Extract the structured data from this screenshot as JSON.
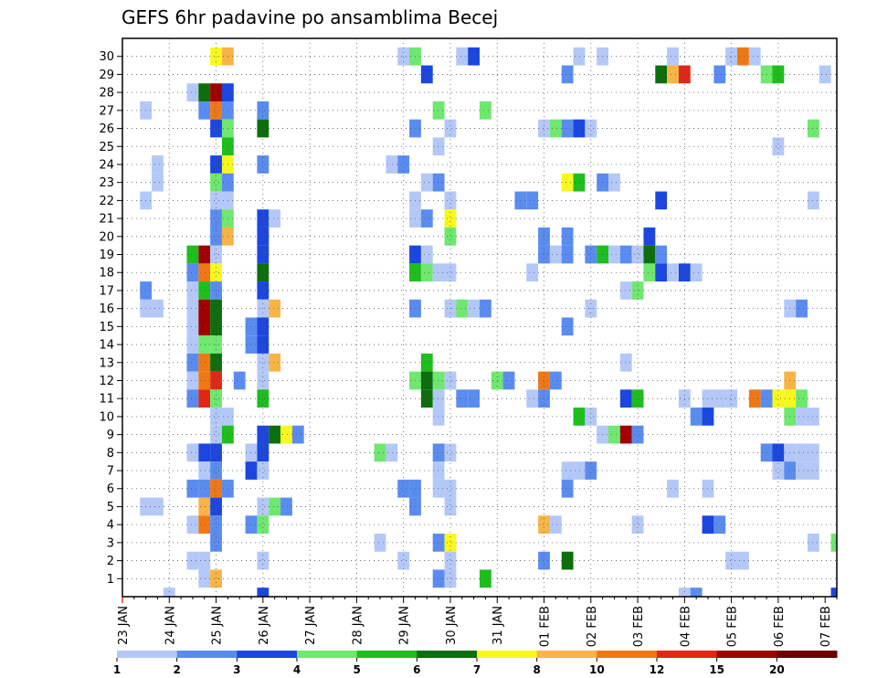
{
  "chart_data": {
    "type": "heatmap",
    "title": "GEFS 6hr padavine po ansamblima Becej",
    "xlabel": "",
    "ylabel": "",
    "x_tick_labels": [
      "23 JAN",
      "24 JAN",
      "25 JAN",
      "26 JAN",
      "27 JAN",
      "28 JAN",
      "29 JAN",
      "30 JAN",
      "31 JAN",
      "01 FEB",
      "02 FEB",
      "03 FEB",
      "04 FEB",
      "05 FEB",
      "06 FEB",
      "07 FEB"
    ],
    "y_tick_labels": [
      "1",
      "2",
      "3",
      "4",
      "5",
      "6",
      "7",
      "8",
      "9",
      "10",
      "11",
      "12",
      "13",
      "14",
      "15",
      "16",
      "17",
      "18",
      "19",
      "20",
      "21",
      "22",
      "23",
      "24",
      "25",
      "26",
      "27",
      "28",
      "29",
      "30"
    ],
    "xlim": [
      0,
      61
    ],
    "ylim": [
      0,
      30
    ],
    "grid": true,
    "color_levels": [
      1,
      2,
      3,
      4,
      5,
      6,
      7,
      8,
      10,
      12,
      15,
      20
    ],
    "colors": [
      "#b4c8f8",
      "#5a8cf0",
      "#1c46e0",
      "#6ee86e",
      "#1ebe1e",
      "#0c6e0c",
      "#f8f81e",
      "#f8b446",
      "#f07814",
      "#e02814",
      "#a00000",
      "#6e0000"
    ],
    "cells": [
      [
        8,
        30,
        7
      ],
      [
        9,
        30,
        8
      ],
      [
        24,
        30,
        1
      ],
      [
        25,
        30,
        4
      ],
      [
        29,
        30,
        1
      ],
      [
        30,
        30,
        3
      ],
      [
        39,
        30,
        1
      ],
      [
        41,
        30,
        1
      ],
      [
        47,
        30,
        1
      ],
      [
        52,
        30,
        1
      ],
      [
        53,
        30,
        9
      ],
      [
        54,
        30,
        1
      ],
      [
        26,
        29,
        3
      ],
      [
        38,
        29,
        2
      ],
      [
        46,
        29,
        6
      ],
      [
        47,
        29,
        8
      ],
      [
        48,
        29,
        10
      ],
      [
        51,
        29,
        2
      ],
      [
        55,
        29,
        4
      ],
      [
        56,
        29,
        5
      ],
      [
        60,
        29,
        1
      ],
      [
        6,
        28,
        1
      ],
      [
        7,
        28,
        6
      ],
      [
        8,
        28,
        11
      ],
      [
        9,
        28,
        3
      ],
      [
        2,
        27,
        1
      ],
      [
        7,
        27,
        2
      ],
      [
        8,
        27,
        9
      ],
      [
        9,
        27,
        2
      ],
      [
        12,
        27,
        2
      ],
      [
        27,
        27,
        4
      ],
      [
        31,
        27,
        4
      ],
      [
        8,
        26,
        3
      ],
      [
        9,
        26,
        4
      ],
      [
        12,
        26,
        6
      ],
      [
        25,
        26,
        2
      ],
      [
        28,
        26,
        1
      ],
      [
        36,
        26,
        1
      ],
      [
        37,
        26,
        4
      ],
      [
        38,
        26,
        2
      ],
      [
        39,
        26,
        3
      ],
      [
        40,
        26,
        1
      ],
      [
        59,
        26,
        4
      ],
      [
        9,
        25,
        5
      ],
      [
        27,
        25,
        1
      ],
      [
        56,
        25,
        1
      ],
      [
        3,
        24,
        1
      ],
      [
        8,
        24,
        3
      ],
      [
        9,
        24,
        7
      ],
      [
        12,
        24,
        2
      ],
      [
        23,
        24,
        1
      ],
      [
        24,
        24,
        2
      ],
      [
        3,
        23,
        1
      ],
      [
        8,
        23,
        4
      ],
      [
        9,
        23,
        2
      ],
      [
        26,
        23,
        1
      ],
      [
        27,
        23,
        2
      ],
      [
        38,
        23,
        7
      ],
      [
        39,
        23,
        5
      ],
      [
        41,
        23,
        2
      ],
      [
        42,
        23,
        1
      ],
      [
        2,
        22,
        1
      ],
      [
        8,
        22,
        1
      ],
      [
        9,
        22,
        1
      ],
      [
        25,
        22,
        1
      ],
      [
        28,
        22,
        1
      ],
      [
        34,
        22,
        2
      ],
      [
        35,
        22,
        2
      ],
      [
        46,
        22,
        3
      ],
      [
        59,
        22,
        1
      ],
      [
        8,
        21,
        2
      ],
      [
        9,
        21,
        4
      ],
      [
        12,
        21,
        3
      ],
      [
        13,
        21,
        1
      ],
      [
        25,
        21,
        1
      ],
      [
        26,
        21,
        2
      ],
      [
        28,
        21,
        7
      ],
      [
        8,
        20,
        2
      ],
      [
        9,
        20,
        8
      ],
      [
        12,
        20,
        3
      ],
      [
        28,
        20,
        4
      ],
      [
        36,
        20,
        2
      ],
      [
        38,
        20,
        2
      ],
      [
        45,
        20,
        3
      ],
      [
        6,
        19,
        5
      ],
      [
        7,
        19,
        11
      ],
      [
        8,
        19,
        1
      ],
      [
        12,
        19,
        3
      ],
      [
        25,
        19,
        3
      ],
      [
        26,
        19,
        1
      ],
      [
        36,
        19,
        2
      ],
      [
        37,
        19,
        1
      ],
      [
        38,
        19,
        2
      ],
      [
        40,
        19,
        2
      ],
      [
        41,
        19,
        5
      ],
      [
        42,
        19,
        1
      ],
      [
        43,
        19,
        2
      ],
      [
        44,
        19,
        1
      ],
      [
        45,
        19,
        6
      ],
      [
        46,
        19,
        2
      ],
      [
        6,
        18,
        2
      ],
      [
        7,
        18,
        9
      ],
      [
        8,
        18,
        7
      ],
      [
        12,
        18,
        6
      ],
      [
        25,
        18,
        5
      ],
      [
        26,
        18,
        4
      ],
      [
        27,
        18,
        1
      ],
      [
        28,
        18,
        1
      ],
      [
        35,
        18,
        1
      ],
      [
        45,
        18,
        4
      ],
      [
        46,
        18,
        3
      ],
      [
        47,
        18,
        1
      ],
      [
        48,
        18,
        3
      ],
      [
        49,
        18,
        1
      ],
      [
        2,
        17,
        2
      ],
      [
        6,
        17,
        1
      ],
      [
        7,
        17,
        5
      ],
      [
        8,
        17,
        2
      ],
      [
        12,
        17,
        3
      ],
      [
        43,
        17,
        1
      ],
      [
        44,
        17,
        4
      ],
      [
        2,
        16,
        1
      ],
      [
        3,
        16,
        1
      ],
      [
        6,
        16,
        1
      ],
      [
        7,
        16,
        11
      ],
      [
        8,
        16,
        6
      ],
      [
        12,
        16,
        1
      ],
      [
        13,
        16,
        8
      ],
      [
        25,
        16,
        2
      ],
      [
        28,
        16,
        1
      ],
      [
        29,
        16,
        4
      ],
      [
        30,
        16,
        1
      ],
      [
        31,
        16,
        2
      ],
      [
        40,
        16,
        1
      ],
      [
        57,
        16,
        1
      ],
      [
        58,
        16,
        2
      ],
      [
        6,
        15,
        1
      ],
      [
        7,
        15,
        11
      ],
      [
        8,
        15,
        6
      ],
      [
        11,
        15,
        2
      ],
      [
        12,
        15,
        3
      ],
      [
        38,
        15,
        2
      ],
      [
        6,
        14,
        1
      ],
      [
        7,
        14,
        4
      ],
      [
        8,
        14,
        4
      ],
      [
        11,
        14,
        2
      ],
      [
        12,
        14,
        3
      ],
      [
        6,
        13,
        2
      ],
      [
        7,
        13,
        9
      ],
      [
        8,
        13,
        6
      ],
      [
        12,
        13,
        1
      ],
      [
        13,
        13,
        8
      ],
      [
        26,
        13,
        5
      ],
      [
        43,
        13,
        1
      ],
      [
        6,
        12,
        1
      ],
      [
        7,
        12,
        9
      ],
      [
        8,
        12,
        10
      ],
      [
        10,
        12,
        2
      ],
      [
        12,
        12,
        1
      ],
      [
        25,
        12,
        4
      ],
      [
        26,
        12,
        6
      ],
      [
        27,
        12,
        4
      ],
      [
        28,
        12,
        1
      ],
      [
        32,
        12,
        4
      ],
      [
        33,
        12,
        2
      ],
      [
        36,
        12,
        9
      ],
      [
        37,
        12,
        2
      ],
      [
        57,
        12,
        8
      ],
      [
        6,
        11,
        2
      ],
      [
        7,
        11,
        10
      ],
      [
        8,
        11,
        4
      ],
      [
        12,
        11,
        5
      ],
      [
        26,
        11,
        6
      ],
      [
        27,
        11,
        1
      ],
      [
        29,
        11,
        2
      ],
      [
        30,
        11,
        2
      ],
      [
        35,
        11,
        1
      ],
      [
        36,
        11,
        2
      ],
      [
        43,
        11,
        3
      ],
      [
        44,
        11,
        5
      ],
      [
        48,
        11,
        1
      ],
      [
        50,
        11,
        1
      ],
      [
        51,
        11,
        1
      ],
      [
        52,
        11,
        1
      ],
      [
        54,
        11,
        9
      ],
      [
        55,
        11,
        2
      ],
      [
        56,
        11,
        7
      ],
      [
        57,
        11,
        7
      ],
      [
        58,
        11,
        4
      ],
      [
        8,
        10,
        1
      ],
      [
        9,
        10,
        1
      ],
      [
        27,
        10,
        1
      ],
      [
        39,
        10,
        5
      ],
      [
        40,
        10,
        1
      ],
      [
        49,
        10,
        2
      ],
      [
        50,
        10,
        3
      ],
      [
        57,
        10,
        4
      ],
      [
        58,
        10,
        1
      ],
      [
        59,
        10,
        1
      ],
      [
        8,
        9,
        1
      ],
      [
        9,
        9,
        5
      ],
      [
        12,
        9,
        3
      ],
      [
        13,
        9,
        6
      ],
      [
        14,
        9,
        7
      ],
      [
        15,
        9,
        2
      ],
      [
        41,
        9,
        1
      ],
      [
        42,
        9,
        4
      ],
      [
        43,
        9,
        11
      ],
      [
        44,
        9,
        2
      ],
      [
        6,
        8,
        1
      ],
      [
        7,
        8,
        3
      ],
      [
        8,
        8,
        3
      ],
      [
        11,
        8,
        1
      ],
      [
        12,
        8,
        3
      ],
      [
        22,
        8,
        4
      ],
      [
        23,
        8,
        1
      ],
      [
        27,
        8,
        2
      ],
      [
        28,
        8,
        1
      ],
      [
        55,
        8,
        2
      ],
      [
        56,
        8,
        3
      ],
      [
        57,
        8,
        1
      ],
      [
        58,
        8,
        1
      ],
      [
        59,
        8,
        1
      ],
      [
        7,
        7,
        1
      ],
      [
        8,
        7,
        2
      ],
      [
        11,
        7,
        3
      ],
      [
        12,
        7,
        1
      ],
      [
        27,
        7,
        1
      ],
      [
        38,
        7,
        1
      ],
      [
        39,
        7,
        1
      ],
      [
        40,
        7,
        2
      ],
      [
        56,
        7,
        1
      ],
      [
        57,
        7,
        2
      ],
      [
        58,
        7,
        1
      ],
      [
        59,
        7,
        1
      ],
      [
        6,
        6,
        2
      ],
      [
        7,
        6,
        2
      ],
      [
        8,
        6,
        9
      ],
      [
        9,
        6,
        2
      ],
      [
        24,
        6,
        2
      ],
      [
        25,
        6,
        2
      ],
      [
        27,
        6,
        1
      ],
      [
        28,
        6,
        1
      ],
      [
        38,
        6,
        2
      ],
      [
        47,
        6,
        1
      ],
      [
        50,
        6,
        1
      ],
      [
        2,
        5,
        1
      ],
      [
        3,
        5,
        1
      ],
      [
        7,
        5,
        8
      ],
      [
        8,
        5,
        3
      ],
      [
        12,
        5,
        1
      ],
      [
        13,
        5,
        4
      ],
      [
        14,
        5,
        2
      ],
      [
        25,
        5,
        2
      ],
      [
        28,
        5,
        1
      ],
      [
        6,
        4,
        1
      ],
      [
        7,
        4,
        9
      ],
      [
        8,
        4,
        2
      ],
      [
        11,
        4,
        2
      ],
      [
        12,
        4,
        4
      ],
      [
        36,
        4,
        8
      ],
      [
        37,
        4,
        1
      ],
      [
        44,
        4,
        1
      ],
      [
        50,
        4,
        3
      ],
      [
        51,
        4,
        2
      ],
      [
        8,
        3,
        2
      ],
      [
        22,
        3,
        1
      ],
      [
        27,
        3,
        2
      ],
      [
        28,
        3,
        7
      ],
      [
        59,
        3,
        1
      ],
      [
        61,
        3,
        4
      ],
      [
        6,
        2,
        1
      ],
      [
        7,
        2,
        1
      ],
      [
        12,
        2,
        1
      ],
      [
        24,
        2,
        1
      ],
      [
        28,
        2,
        1
      ],
      [
        36,
        2,
        2
      ],
      [
        38,
        2,
        6
      ],
      [
        52,
        2,
        1
      ],
      [
        53,
        2,
        1
      ],
      [
        7,
        1,
        1
      ],
      [
        8,
        1,
        8
      ],
      [
        27,
        1,
        2
      ],
      [
        28,
        1,
        1
      ],
      [
        31,
        1,
        5
      ],
      [
        4,
        0,
        1
      ],
      [
        12,
        0,
        3
      ],
      [
        48,
        0,
        1
      ],
      [
        49,
        0,
        2
      ],
      [
        61,
        0,
        3
      ]
    ]
  }
}
